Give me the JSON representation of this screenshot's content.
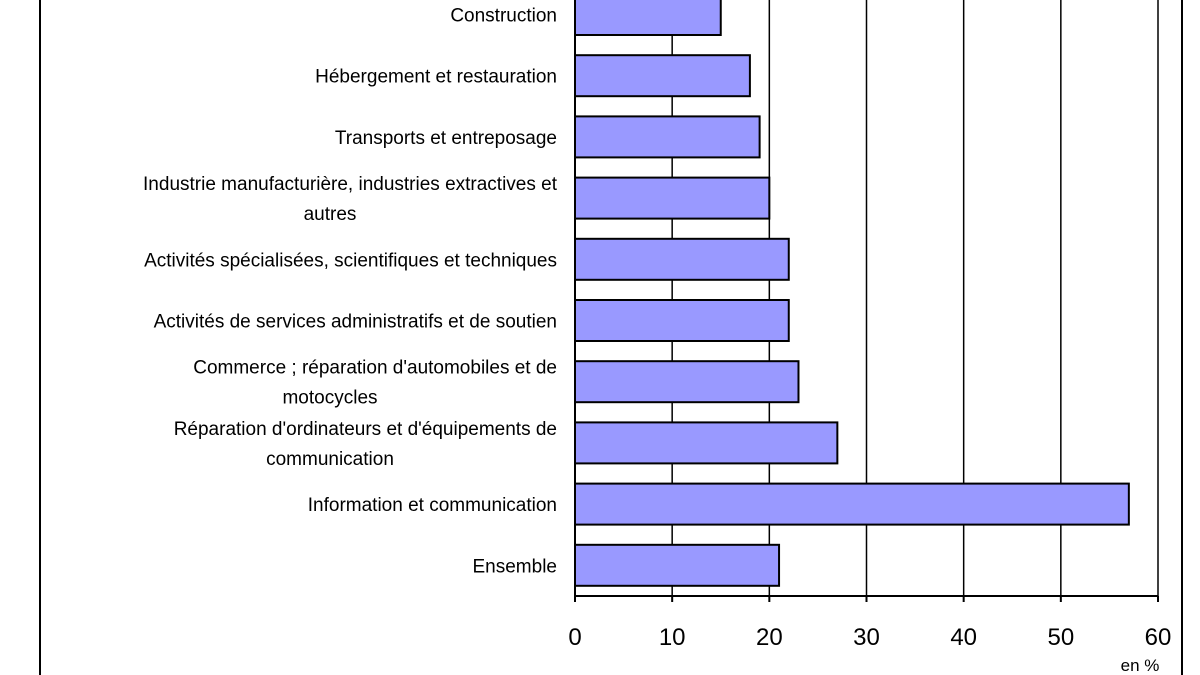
{
  "chart_data": {
    "type": "bar",
    "orientation": "horizontal",
    "categories": [
      "Construction",
      "Hébergement et restauration",
      "Transports et entreposage",
      [
        "Industrie manufacturière, industries extractives et",
        "autres"
      ],
      "Activités spécialisées, scientifiques et techniques",
      "Activités de services administratifs et de soutien",
      [
        "Commerce ; réparation d'automobiles et de",
        "motocycles"
      ],
      [
        "Réparation d'ordinateurs et d'équipements de",
        "communication"
      ],
      "Information et communication",
      "Ensemble"
    ],
    "values": [
      15,
      18,
      19,
      20,
      22,
      22,
      23,
      27,
      57,
      21
    ],
    "xlim": [
      0,
      60
    ],
    "ticks": [
      "0",
      "10",
      "20",
      "30",
      "40",
      "50",
      "60"
    ],
    "unit": "en %",
    "bar_color": "#9999ff",
    "grid": true
  }
}
